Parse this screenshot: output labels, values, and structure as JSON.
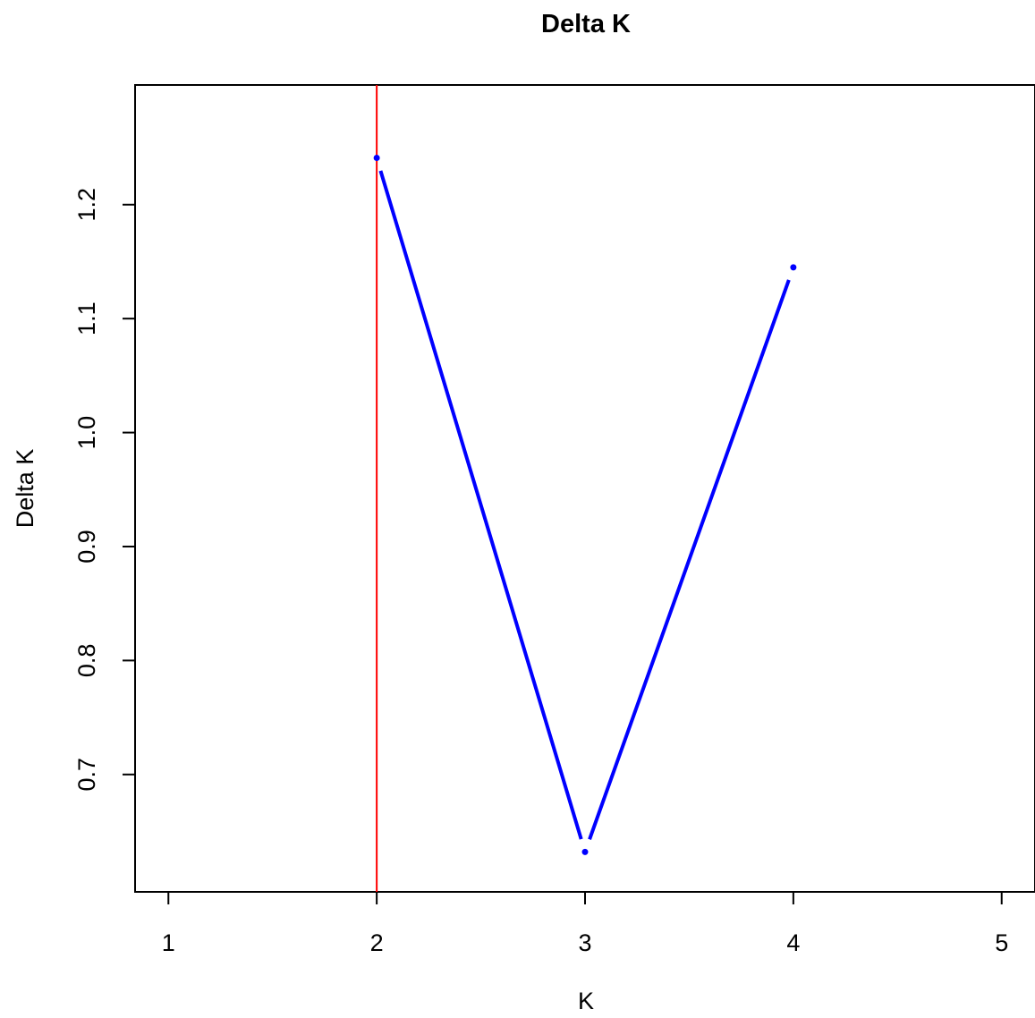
{
  "chart_data": {
    "type": "line",
    "title": "Delta K",
    "xlabel": "K",
    "ylabel": "Delta K",
    "x": [
      2,
      3,
      4
    ],
    "y": [
      1.241,
      0.632,
      1.145
    ],
    "xlim": [
      0.84,
      5.16
    ],
    "ylim": [
      0.597,
      1.305
    ],
    "xticks": [
      1,
      2,
      3,
      4,
      5
    ],
    "xtick_labels": [
      "1",
      "2",
      "3",
      "4",
      "5"
    ],
    "yticks": [
      0.7,
      0.8,
      0.9,
      1.0,
      1.1,
      1.2
    ],
    "ytick_labels": [
      "0.7",
      "0.8",
      "0.9",
      "1.0",
      "1.1",
      "1.2"
    ],
    "vline_x": 2,
    "line_color": "#0000ff",
    "vline_color": "#ff0000",
    "grid": false,
    "legend": "none"
  }
}
